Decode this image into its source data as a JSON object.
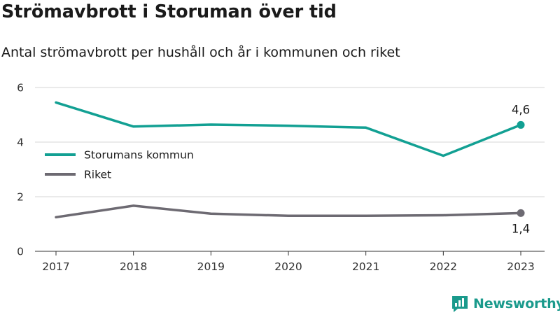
{
  "header": {
    "title": "Strömavbrott i Storuman över tid",
    "subtitle": "Antal strömavbrott per hushåll och år i kommunen och riket"
  },
  "brand": {
    "name": "Newsworthy",
    "icon": "newsworthy-logo-icon",
    "color": "#1a9a8c"
  },
  "chart_data": {
    "type": "line",
    "title": "Strömavbrott i Storuman över tid",
    "subtitle": "Antal strömavbrott per hushåll och år i kommunen och riket",
    "xlabel": "",
    "ylabel": "",
    "x": [
      "2017",
      "2018",
      "2019",
      "2020",
      "2021",
      "2022",
      "2023"
    ],
    "ylim": [
      0,
      6
    ],
    "yticks": [
      "0",
      "2",
      "4",
      "6"
    ],
    "grid": "horizontal",
    "legend_position": "left-middle",
    "series": [
      {
        "name": "Storumans kommun",
        "color": "#12a093",
        "values": [
          5.45,
          4.57,
          4.64,
          4.6,
          4.53,
          3.5,
          4.63
        ],
        "end_label": "4,6"
      },
      {
        "name": "Riket",
        "color": "#6d6a72",
        "values": [
          1.25,
          1.67,
          1.38,
          1.3,
          1.3,
          1.32,
          1.4
        ],
        "end_label": "1,4"
      }
    ]
  }
}
